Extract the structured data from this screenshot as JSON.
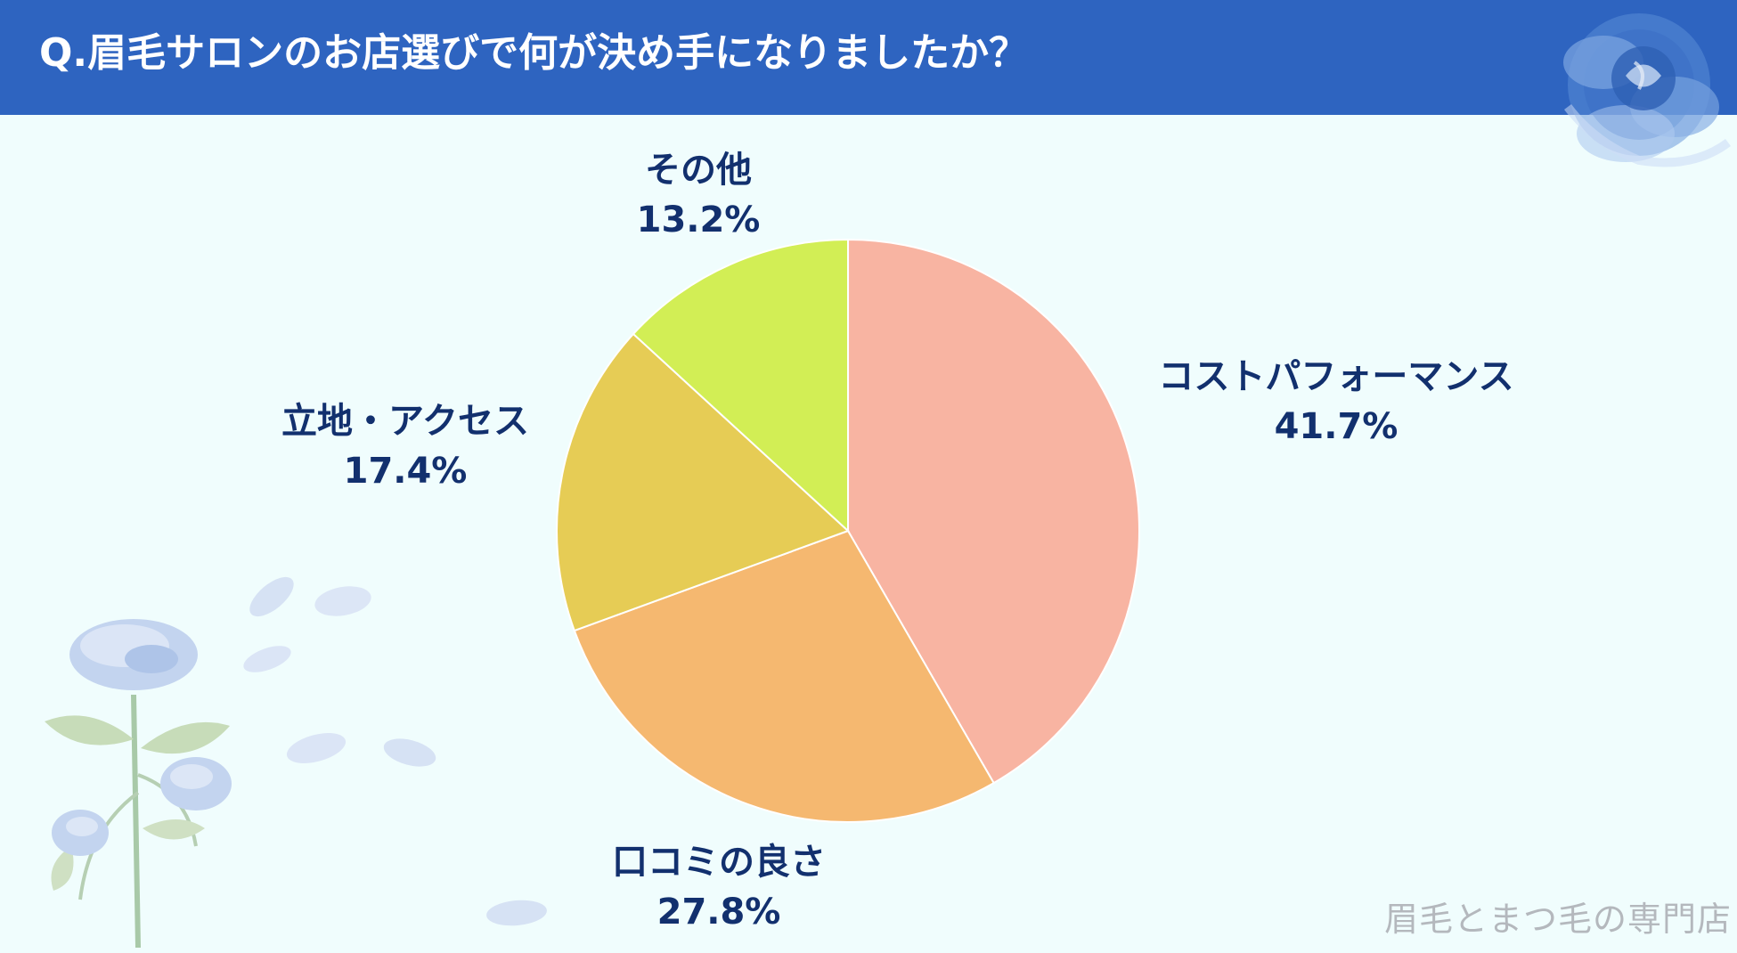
{
  "header": {
    "title": "Q.眉毛サロンのお店選びで何が決め手になりましたか？"
  },
  "chart_data": {
    "type": "pie",
    "title": "Q.眉毛サロンのお店選びで何が決め手になりましたか？",
    "slices": [
      {
        "label": "コストパフォーマンス",
        "value": 41.7,
        "value_label": "41.7%",
        "color": "#f8b4a2"
      },
      {
        "label": "口コミの良さ",
        "value": 27.8,
        "value_label": "27.8%",
        "color": "#f5b870"
      },
      {
        "label": "立地・アクセス",
        "value": 17.4,
        "value_label": "17.4%",
        "color": "#e6cc55"
      },
      {
        "label": "その他",
        "value": 13.2,
        "value_label": "13.2%",
        "color": "#d2ee55"
      }
    ],
    "start": "12 o'clock, clockwise",
    "legend": "none (labels beside slices)"
  },
  "footer": {
    "watermark": "眉毛とまつ毛の専門店"
  },
  "decorations": {
    "top_right": "blue-rose-icon",
    "bottom_left": "blue-rose-stem-icon",
    "petals": "petal-icon"
  }
}
